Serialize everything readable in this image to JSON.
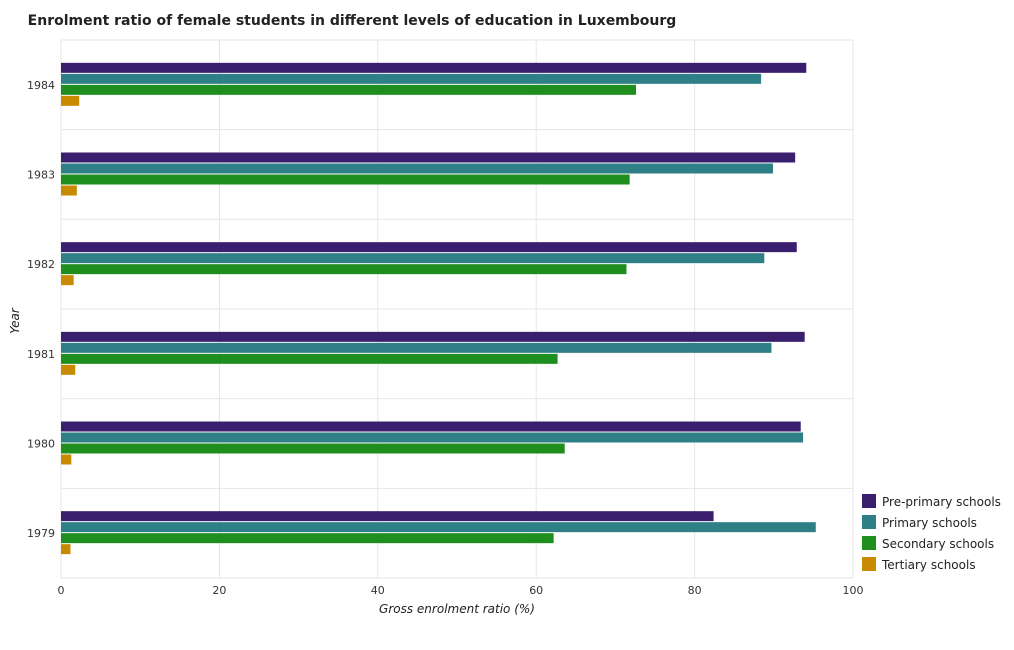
{
  "chart_data": {
    "type": "bar",
    "orientation": "horizontal",
    "title": "Enrolment ratio of female students in different levels of education in Luxembourg",
    "xlabel": "Gross enrolment ratio (%)",
    "ylabel": "Year",
    "xlim": [
      0,
      100
    ],
    "xticks": [
      0,
      20,
      40,
      60,
      80,
      100
    ],
    "categories": [
      "1979",
      "1980",
      "1981",
      "1982",
      "1983",
      "1984"
    ],
    "series": [
      {
        "name": "Pre-primary schools",
        "color": "#3a1f6e",
        "values": [
          82.4,
          93.4,
          93.9,
          92.9,
          92.7,
          94.1
        ]
      },
      {
        "name": "Primary schools",
        "color": "#2e7f86",
        "values": [
          95.3,
          93.7,
          89.7,
          88.8,
          89.9,
          88.4
        ]
      },
      {
        "name": "Secondary schools",
        "color": "#1e8e1e",
        "values": [
          62.2,
          63.6,
          62.7,
          71.4,
          71.8,
          72.6
        ]
      },
      {
        "name": "Tertiary schools",
        "color": "#c88a00",
        "values": [
          1.2,
          1.3,
          1.8,
          1.6,
          2.0,
          2.3
        ]
      }
    ],
    "grid": true,
    "legend_position": "bottom-right"
  }
}
